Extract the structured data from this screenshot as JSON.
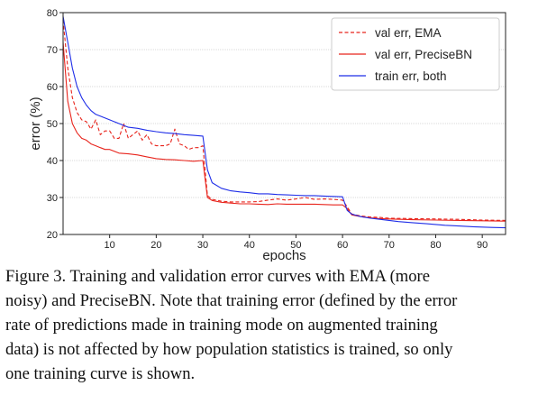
{
  "chart_data": {
    "type": "line",
    "title": "",
    "xlabel": "epochs",
    "ylabel": "error (%)",
    "xlim": [
      0,
      95
    ],
    "ylim": [
      20,
      80
    ],
    "xticks": [
      10,
      20,
      30,
      40,
      50,
      60,
      70,
      80,
      90
    ],
    "yticks": [
      20,
      30,
      40,
      50,
      60,
      70,
      80
    ],
    "grid": "horizontal",
    "legend_position": "top-right",
    "series": [
      {
        "name": "val err, EMA",
        "color": "#e8241c",
        "style": "dashed",
        "x": [
          0,
          1,
          2,
          3,
          4,
          5,
          6,
          7,
          8,
          9,
          10,
          11,
          12,
          13,
          14,
          15,
          16,
          17,
          18,
          19,
          20,
          21,
          22,
          23,
          24,
          25,
          26,
          27,
          28,
          29,
          30,
          31,
          32,
          33,
          34,
          35,
          36,
          38,
          40,
          42,
          44,
          46,
          48,
          50,
          52,
          54,
          56,
          58,
          60,
          61,
          62,
          64,
          66,
          68,
          70,
          75,
          80,
          85,
          90,
          95
        ],
        "y": [
          78,
          65,
          57,
          53,
          51,
          50.5,
          48.5,
          51,
          47,
          48,
          48,
          46,
          46,
          50,
          46,
          47,
          48,
          45.5,
          47,
          44.5,
          44,
          44,
          44,
          44.5,
          48.5,
          44.5,
          44,
          43,
          43.5,
          43.5,
          44,
          30.5,
          29.5,
          29.3,
          29,
          28.9,
          28.8,
          28.8,
          28.8,
          28.9,
          29.3,
          29.6,
          29.3,
          29.6,
          30,
          29.5,
          29.6,
          29.5,
          29.3,
          27.5,
          25.5,
          25,
          24.7,
          24.6,
          24.4,
          24.3,
          24.2,
          24.1,
          23.9,
          23.8
        ]
      },
      {
        "name": "val err, PreciseBN",
        "color": "#e8241c",
        "style": "solid",
        "x": [
          0,
          1,
          2,
          3,
          4,
          5,
          6,
          7,
          8,
          9,
          10,
          11,
          12,
          14,
          16,
          18,
          20,
          22,
          24,
          26,
          28,
          30,
          31,
          32,
          34,
          36,
          38,
          40,
          42,
          44,
          46,
          48,
          50,
          52,
          54,
          56,
          58,
          60,
          61,
          62,
          64,
          66,
          68,
          70,
          75,
          80,
          85,
          90,
          95
        ],
        "y": [
          72,
          56,
          50,
          47.5,
          46,
          45.5,
          44.5,
          44,
          43.5,
          43,
          43,
          42.5,
          42,
          41.8,
          41.5,
          41,
          40.5,
          40.3,
          40.2,
          40,
          39.8,
          40,
          30,
          29.2,
          28.7,
          28.5,
          28.3,
          28.3,
          28.2,
          28.1,
          28.3,
          28.2,
          28.2,
          28.2,
          28.2,
          28.1,
          28,
          28,
          27,
          25.3,
          24.8,
          24.5,
          24.3,
          24.2,
          24,
          23.9,
          23.8,
          23.7,
          23.6
        ]
      },
      {
        "name": "train err, both",
        "color": "#1f2ee8",
        "style": "solid",
        "x": [
          0,
          1,
          2,
          3,
          4,
          5,
          6,
          7,
          8,
          10,
          12,
          14,
          16,
          18,
          20,
          22,
          24,
          26,
          28,
          30,
          31,
          32,
          34,
          36,
          38,
          40,
          42,
          44,
          46,
          48,
          50,
          52,
          54,
          56,
          58,
          60,
          61,
          62,
          64,
          66,
          68,
          70,
          72,
          75,
          78,
          80,
          82,
          85,
          88,
          90,
          92,
          95
        ],
        "y": [
          79,
          72,
          65,
          60,
          57,
          55,
          53.5,
          52.5,
          52,
          51,
          50,
          49,
          48.7,
          48.2,
          47.8,
          47.5,
          47.3,
          47,
          46.8,
          46.6,
          37.5,
          34,
          32.5,
          31.8,
          31.5,
          31.3,
          31,
          31,
          30.8,
          30.7,
          30.6,
          30.5,
          30.5,
          30.4,
          30.3,
          30.2,
          26.5,
          25.5,
          24.8,
          24.4,
          24.1,
          23.8,
          23.5,
          23.2,
          22.9,
          22.7,
          22.5,
          22.3,
          22.1,
          22,
          21.9,
          21.8
        ]
      }
    ]
  },
  "caption": {
    "lines": [
      "Figure 3. Training and validation error curves with EMA (more",
      "noisy) and PreciseBN. Note that training error (defined by the error",
      "rate of predictions made in training mode on augmented training",
      "data) is not affected by how population statistics is trained, so only",
      "one training curve is shown."
    ]
  }
}
